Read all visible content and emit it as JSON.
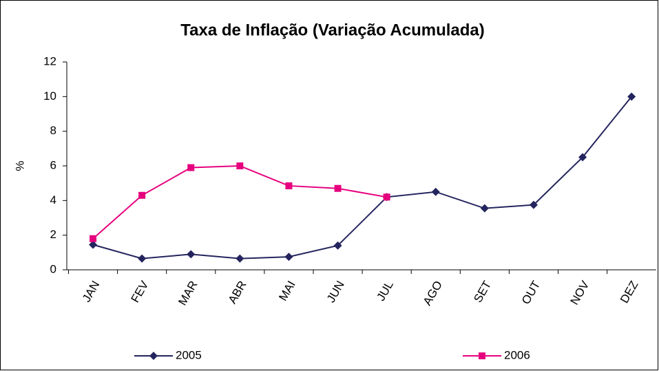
{
  "chart_data": {
    "type": "line",
    "title": "Taxa de Inflação (Variação Acumulada)",
    "y_label": "%",
    "categories": [
      "JAN",
      "FEV",
      "MAR",
      "ABR",
      "MAI",
      "JUN",
      "JUL",
      "AGO",
      "SET",
      "OUT",
      "NOV",
      "DEZ"
    ],
    "series": [
      {
        "name": "2005",
        "color": "#24245e",
        "marker": "diamond",
        "values": [
          1.45,
          0.65,
          0.9,
          0.65,
          0.75,
          1.4,
          4.2,
          4.5,
          3.55,
          3.75,
          6.5,
          10.0
        ]
      },
      {
        "name": "2006",
        "color": "#e6007e",
        "marker": "square",
        "values": [
          1.8,
          4.3,
          5.9,
          6.0,
          4.85,
          4.7,
          4.2,
          null,
          null,
          null,
          null,
          null
        ]
      }
    ],
    "ylim": [
      0,
      12
    ],
    "yticks": [
      0,
      2,
      4,
      6,
      8,
      10,
      12
    ],
    "grid": false,
    "legend": "bottom"
  }
}
